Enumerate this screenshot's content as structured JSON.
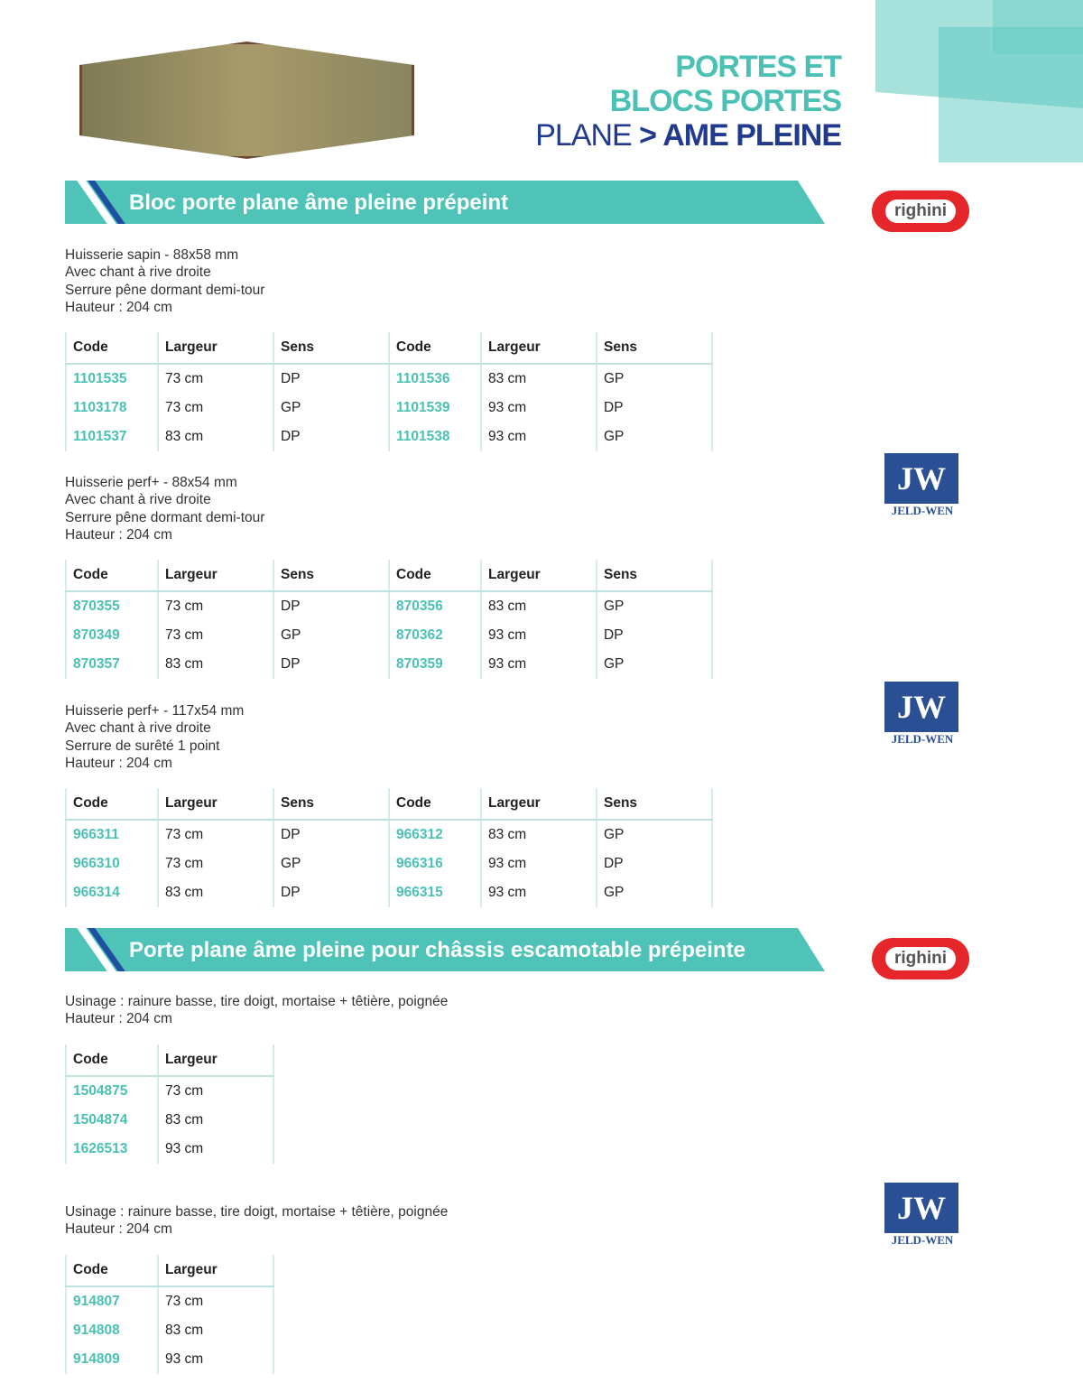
{
  "header": {
    "line1": "PORTES ET",
    "line2": "BLOCS PORTES",
    "line3_a": "PLANE",
    "line3_b": "> AME PLEINE"
  },
  "sections": [
    {
      "title": "Bloc porte plane âme pleine prépeint",
      "brand": "righini"
    },
    {
      "title": "Porte plane âme pleine pour châssis escamotable prépeinte",
      "brand": "righini"
    }
  ],
  "jw": {
    "mark": "JW",
    "name": "JELD-WEN"
  },
  "headers": {
    "code": "Code",
    "largeur": "Largeur",
    "sens": "Sens"
  },
  "blocks": [
    {
      "desc": [
        "Huisserie sapin - 88x58 mm",
        "Avec chant à rive droite",
        "Serrure pêne dormant demi-tour",
        "Hauteur : 204 cm"
      ],
      "rows": [
        [
          "1101535",
          "73 cm",
          "DP",
          "1101536",
          "83 cm",
          "GP"
        ],
        [
          "1103178",
          "73 cm",
          "GP",
          "1101539",
          "93 cm",
          "DP"
        ],
        [
          "1101537",
          "83 cm",
          "DP",
          "1101538",
          "93 cm",
          "GP"
        ]
      ]
    },
    {
      "desc": [
        "Huisserie perf+ - 88x54 mm",
        "Avec chant à rive droite",
        "Serrure pêne dormant demi-tour",
        "Hauteur : 204 cm"
      ],
      "rows": [
        [
          "870355",
          "73 cm",
          "DP",
          "870356",
          "83 cm",
          "GP"
        ],
        [
          "870349",
          "73 cm",
          "GP",
          "870362",
          "93 cm",
          "DP"
        ],
        [
          "870357",
          "83 cm",
          "DP",
          "870359",
          "93 cm",
          "GP"
        ]
      ]
    },
    {
      "desc": [
        "Huisserie perf+ - 117x54 mm",
        "Avec chant à rive droite",
        "Serrure de surêté 1 point",
        "Hauteur : 204 cm"
      ],
      "rows": [
        [
          "966311",
          "73 cm",
          "DP",
          "966312",
          "83 cm",
          "GP"
        ],
        [
          "966310",
          "73 cm",
          "GP",
          "966316",
          "93 cm",
          "DP"
        ],
        [
          "966314",
          "83 cm",
          "DP",
          "966315",
          "93 cm",
          "GP"
        ]
      ]
    },
    {
      "desc": [
        "Usinage : rainure basse, tire doigt, mortaise + têtière, poignée",
        "Hauteur : 204 cm"
      ],
      "rows": [
        [
          "1504875",
          "73 cm"
        ],
        [
          "1504874",
          "83 cm"
        ],
        [
          "1626513",
          "93 cm"
        ]
      ]
    },
    {
      "desc": [
        "Usinage : rainure basse, tire doigt, mortaise + têtière, poignée",
        "Hauteur : 204 cm"
      ],
      "rows": [
        [
          "914807",
          "73 cm"
        ],
        [
          "914808",
          "83 cm"
        ],
        [
          "914809",
          "93 cm"
        ]
      ]
    }
  ]
}
